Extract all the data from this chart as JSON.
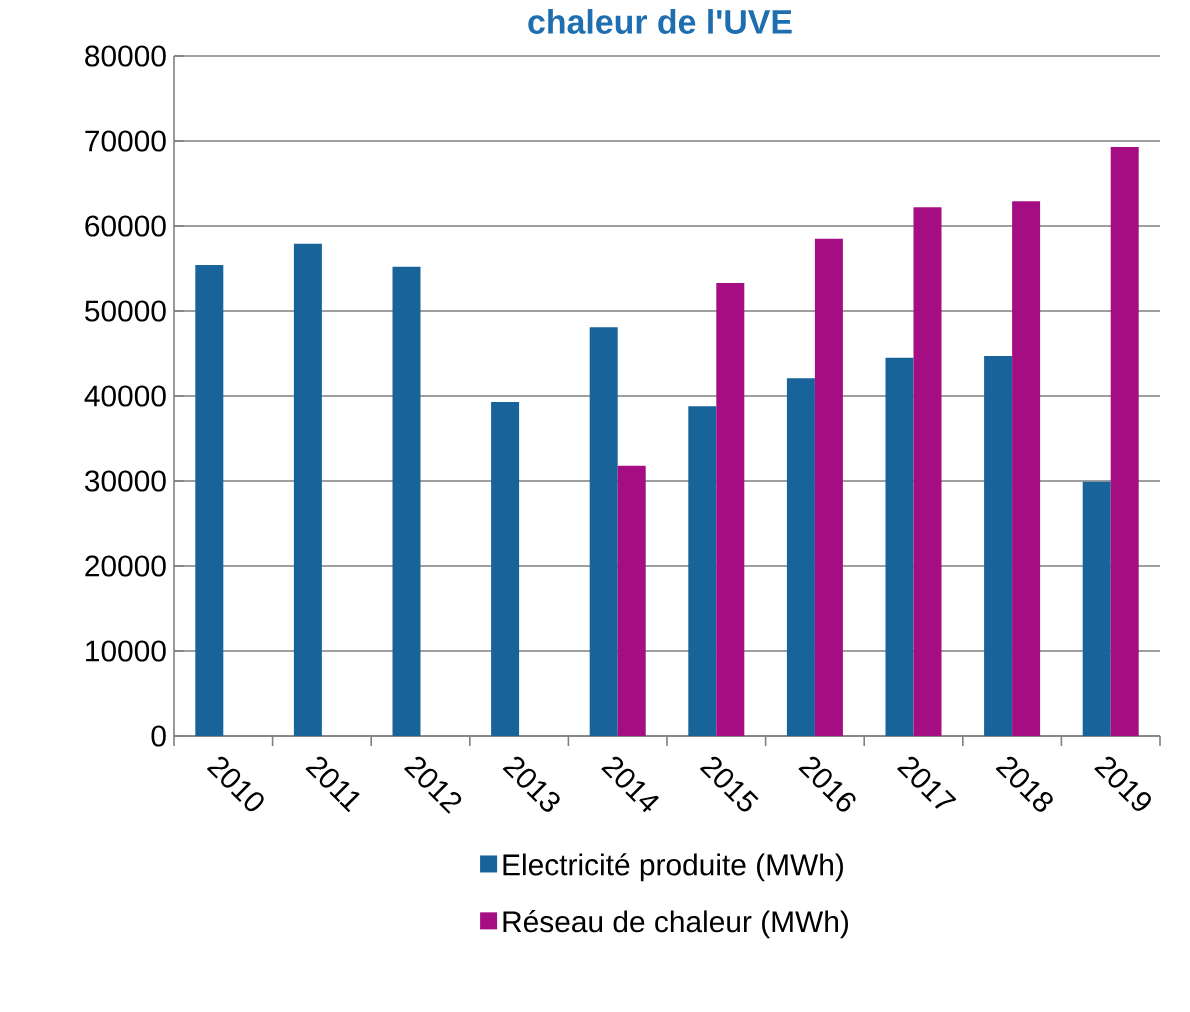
{
  "chart_data": {
    "type": "bar",
    "title": "chaleur de l'UVE",
    "categories": [
      "2010",
      "2011",
      "2012",
      "2013",
      "2014",
      "2015",
      "2016",
      "2017",
      "2018",
      "2019"
    ],
    "series": [
      {
        "name": "Electricité produite (MWh)",
        "color": "#17639a",
        "values": [
          55400,
          57900,
          55200,
          39300,
          48100,
          38800,
          42100,
          44500,
          44700,
          29900
        ]
      },
      {
        "name": "Réseau de chaleur (MWh)",
        "color": "#a50e82",
        "values": [
          null,
          null,
          null,
          null,
          31800,
          53300,
          58500,
          62200,
          62900,
          69300
        ]
      }
    ],
    "ylim": [
      0,
      80000
    ],
    "yticks": [
      0,
      10000,
      20000,
      30000,
      40000,
      50000,
      60000,
      70000,
      80000
    ],
    "grid": "y",
    "legend": "bottom"
  }
}
